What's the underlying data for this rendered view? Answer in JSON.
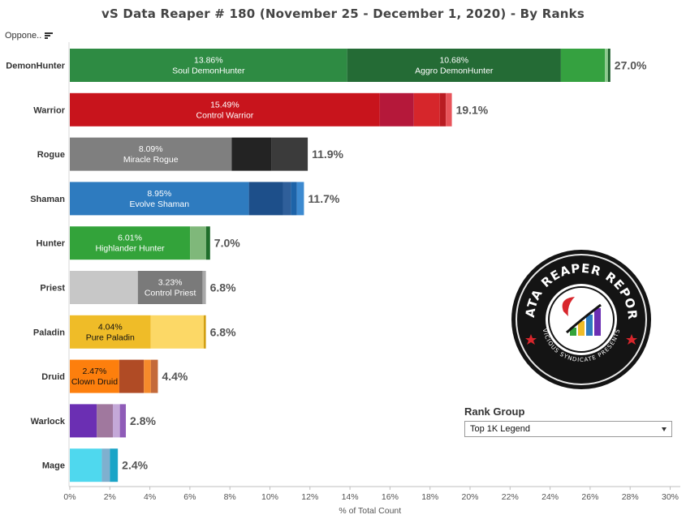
{
  "title": "vS Data Reaper #  180 (November 25 - December 1, 2020) - By Ranks",
  "sort_control": {
    "label": "Oppone..",
    "icon": "sort-descending-icon"
  },
  "rank_group": {
    "label": "Rank Group",
    "selected": "Top 1K Legend"
  },
  "logo": {
    "icon": "data-reaper-report-logo",
    "text_top": "DATA REAPER REPORT",
    "text_bottom": "VICIOUS SYNDICATE PRESENTS"
  },
  "chart_data": {
    "type": "bar",
    "orientation": "horizontal",
    "stacked": true,
    "title": "vS Data Reaper #  180 (November 25 - December 1, 2020) - By Ranks",
    "xlabel": "% of Total Count",
    "ylabel": "Oppone..",
    "xlim": [
      0,
      30.5
    ],
    "x_ticks": [
      "0%",
      "2%",
      "4%",
      "6%",
      "8%",
      "10%",
      "12%",
      "14%",
      "16%",
      "18%",
      "20%",
      "22%",
      "24%",
      "26%",
      "28%",
      "30%"
    ],
    "grid": false,
    "categories": [
      {
        "name": "DemonHunter",
        "total": "27.0%",
        "segments": [
          {
            "value": 13.86,
            "color": "#2e8b43",
            "pct": "13.86%",
            "label": "Soul DemonHunter",
            "text_color": "#ffffff"
          },
          {
            "value": 10.68,
            "color": "#246b35",
            "pct": "10.68%",
            "label": "Aggro DemonHunter",
            "text_color": "#ffffff"
          },
          {
            "value": 2.2,
            "color": "#35a140"
          },
          {
            "value": 0.15,
            "color": "#8cc98d"
          },
          {
            "value": 0.12,
            "color": "#1e5f2c"
          }
        ]
      },
      {
        "name": "Warrior",
        "total": "19.1%",
        "segments": [
          {
            "value": 15.49,
            "color": "#c8141c",
            "pct": "15.49%",
            "label": "Control Warrior",
            "text_color": "#ffffff"
          },
          {
            "value": 1.7,
            "color": "#b5183a"
          },
          {
            "value": 1.3,
            "color": "#d6262b"
          },
          {
            "value": 0.3,
            "color": "#b91c22"
          },
          {
            "value": 0.3,
            "color": "#e8545a"
          }
        ]
      },
      {
        "name": "Rogue",
        "total": "11.9%",
        "segments": [
          {
            "value": 8.09,
            "color": "#7f7f7f",
            "pct": "8.09%",
            "label": "Miracle Rogue",
            "text_color": "#ffffff"
          },
          {
            "value": 2.0,
            "color": "#232323"
          },
          {
            "value": 1.8,
            "color": "#3b3b3b"
          }
        ]
      },
      {
        "name": "Shaman",
        "total": "11.7%",
        "segments": [
          {
            "value": 8.95,
            "color": "#2e7bbf",
            "pct": "8.95%",
            "label": "Evolve Shaman",
            "text_color": "#ffffff"
          },
          {
            "value": 1.7,
            "color": "#1d4f8a"
          },
          {
            "value": 0.4,
            "color": "#2f5f9a"
          },
          {
            "value": 0.3,
            "color": "#1d63a8"
          },
          {
            "value": 0.35,
            "color": "#3d8ad0"
          }
        ]
      },
      {
        "name": "Hunter",
        "total": "7.0%",
        "segments": [
          {
            "value": 6.01,
            "color": "#33a33a",
            "pct": "6.01%",
            "label": "Highlander Hunter",
            "text_color": "#ffffff"
          },
          {
            "value": 0.8,
            "color": "#7fb87a"
          },
          {
            "value": 0.2,
            "color": "#1f6e2b"
          }
        ]
      },
      {
        "name": "Priest",
        "total": "6.8%",
        "segments": [
          {
            "value": 3.4,
            "color": "#c7c7c7"
          },
          {
            "value": 3.23,
            "color": "#7a7a7a",
            "pct": "3.23%",
            "label": "Control Priest",
            "text_color": "#ffffff"
          },
          {
            "value": 0.17,
            "color": "#a9a9a9"
          }
        ]
      },
      {
        "name": "Paladin",
        "total": "6.8%",
        "segments": [
          {
            "value": 4.04,
            "color": "#efbc28",
            "pct": "4.04%",
            "label": "Pure Paladin",
            "text_color": "#111111"
          },
          {
            "value": 2.65,
            "color": "#fcd866"
          },
          {
            "value": 0.11,
            "color": "#d29f12"
          }
        ]
      },
      {
        "name": "Druid",
        "total": "4.4%",
        "segments": [
          {
            "value": 2.47,
            "color": "#fd7f0d",
            "pct": "2.47%",
            "label": "Clown Druid",
            "text_color": "#111111"
          },
          {
            "value": 1.23,
            "color": "#b04b25"
          },
          {
            "value": 0.35,
            "color": "#f58a2b"
          },
          {
            "value": 0.35,
            "color": "#c46a3a"
          }
        ]
      },
      {
        "name": "Warlock",
        "total": "2.8%",
        "segments": [
          {
            "value": 1.35,
            "color": "#6b2fb3"
          },
          {
            "value": 0.8,
            "color": "#a0789e"
          },
          {
            "value": 0.35,
            "color": "#c4a8d8"
          },
          {
            "value": 0.3,
            "color": "#8f5cb8"
          }
        ]
      },
      {
        "name": "Mage",
        "total": "2.4%",
        "segments": [
          {
            "value": 1.6,
            "color": "#4fd8ee"
          },
          {
            "value": 0.4,
            "color": "#7fb0cf"
          },
          {
            "value": 0.4,
            "color": "#1aa4c7"
          }
        ]
      }
    ]
  }
}
